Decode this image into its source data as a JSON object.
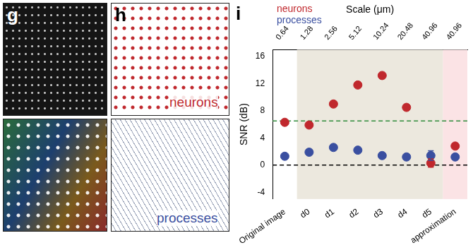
{
  "panels": [
    {
      "label": "g"
    },
    {
      "label": "h",
      "texts": [
        {
          "text": "neurons",
          "color": "#c0282d"
        },
        {
          "text": "processes",
          "color": "#3a4fa0"
        }
      ]
    }
  ],
  "chart_data": {
    "type": "scatter",
    "title": "i",
    "ylabel": "SNR (dB)",
    "x2_title": "Scale (μm)",
    "x2_labels": [
      "0.64",
      "1.28",
      "2.56",
      "5.12",
      "10.24",
      "20.48",
      "40.96",
      "40.96"
    ],
    "categories": [
      "Original image",
      "d0",
      "d1",
      "d2",
      "d3",
      "d4",
      "d5",
      "approximation"
    ],
    "series": [
      {
        "name": "neurons",
        "color": "#c0282d",
        "marker": "circle",
        "values": [
          6.3,
          5.9,
          9.0,
          11.8,
          13.2,
          8.5,
          0.3,
          2.8
        ],
        "errors": [
          null,
          null,
          null,
          null,
          null,
          null,
          0.6,
          null
        ]
      },
      {
        "name": "processes",
        "color": "#3a4fa0",
        "marker": "circle",
        "values": [
          1.3,
          1.9,
          2.6,
          2.2,
          1.4,
          1.2,
          1.4,
          1.2
        ],
        "errors": [
          null,
          null,
          null,
          null,
          null,
          null,
          0.7,
          null
        ]
      }
    ],
    "reference_lines": [
      {
        "value": 6.5,
        "color": "#2e8b3a",
        "line_style": "dashed"
      },
      {
        "value": 0,
        "color": "#000000",
        "line_style": "dashed"
      }
    ],
    "bands": [
      {
        "from": "d0",
        "to": "d5",
        "color": "#ece8de"
      },
      {
        "from": "approximation",
        "to": "approximation",
        "color": "#fbe3e5"
      }
    ],
    "ylim": [
      -5,
      17
    ],
    "yticks": [
      -4,
      0,
      4,
      8,
      12,
      16
    ],
    "grid": false,
    "legend": "top left"
  }
}
